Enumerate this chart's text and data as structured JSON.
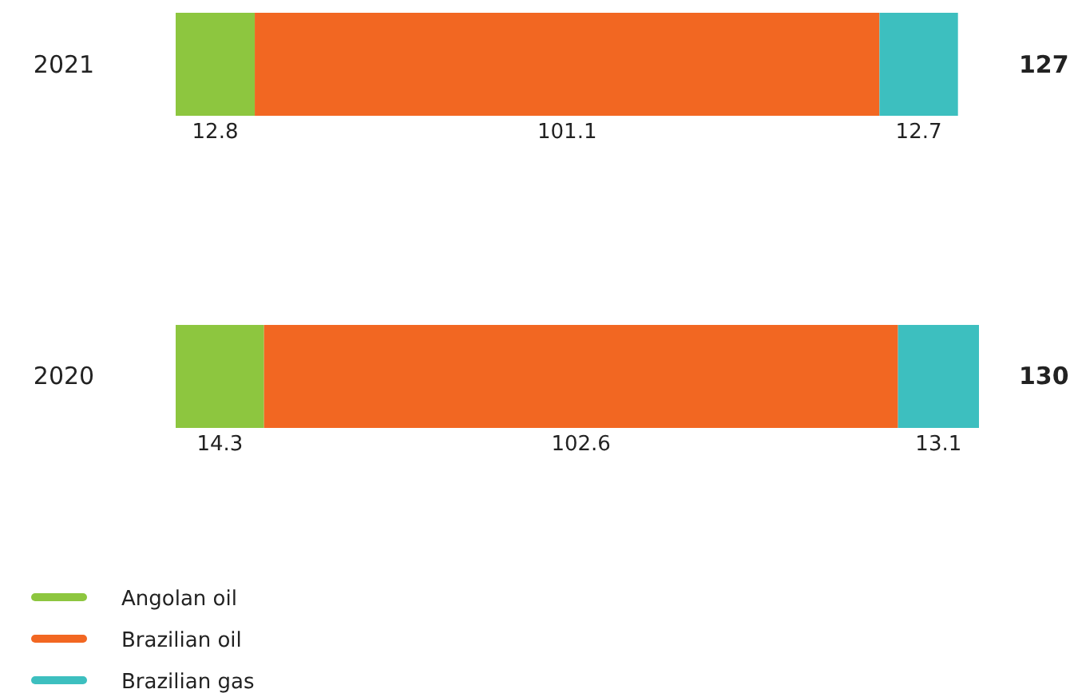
{
  "chart_data": {
    "type": "bar",
    "orientation": "horizontal",
    "stacked": true,
    "categories": [
      "2021",
      "2020"
    ],
    "series": [
      {
        "name": "Angolan oil",
        "color": "#8dc63f",
        "values": [
          12.8,
          14.3
        ]
      },
      {
        "name": "Brazilian oil",
        "color": "#f26722",
        "values": [
          101.1,
          102.6
        ]
      },
      {
        "name": "Brazilian gas",
        "color": "#3dbfbf",
        "values": [
          12.7,
          13.1
        ]
      }
    ],
    "data_labels": true,
    "totals": [
      "127",
      "130"
    ],
    "legend": "bottom left"
  }
}
